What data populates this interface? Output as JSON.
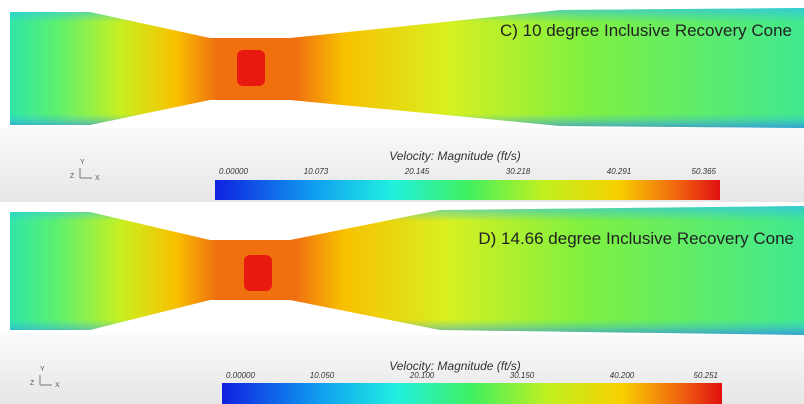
{
  "panels": [
    {
      "title": "C) 10 degree Inclusive Recovery Cone",
      "triad": {
        "y": "Y",
        "z": "Z",
        "x": "X"
      },
      "colorbar": {
        "title": "Velocity: Magnitude (ft/s)",
        "labels": [
          "0.00000",
          "10.073",
          "20.145",
          "30.218",
          "40.291",
          "50.365"
        ]
      }
    },
    {
      "title": "D) 14.66 degree Inclusive Recovery Cone",
      "triad": {
        "y": "Y",
        "z": "Z",
        "x": "X"
      },
      "colorbar": {
        "title": "Velocity: Magnitude (ft/s)",
        "labels": [
          "0.00000",
          "10.050",
          "20.100",
          "30.150",
          "40.200",
          "50.251"
        ]
      }
    }
  ]
}
